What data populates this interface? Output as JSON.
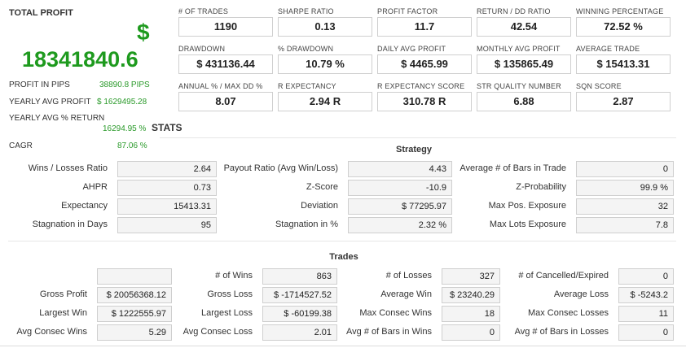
{
  "summary": {
    "total_profit_label": "TOTAL PROFIT",
    "currency_symbol": "$",
    "total_profit_value": "18341840.6",
    "items": [
      {
        "label": "PROFIT IN PIPS",
        "value": "38890.8 PIPS"
      },
      {
        "label": "YEARLY AVG PROFIT",
        "value": "$ 1629495.28"
      },
      {
        "label": "YEARLY AVG % RETURN",
        "value": "16294.95 %"
      },
      {
        "label": "CAGR",
        "value": "87.06 %"
      }
    ]
  },
  "stats_heading": "STATS",
  "metrics": [
    {
      "label": "# OF TRADES",
      "value": "1190"
    },
    {
      "label": "SHARPE RATIO",
      "value": "0.13"
    },
    {
      "label": "PROFIT FACTOR",
      "value": "11.7"
    },
    {
      "label": "RETURN / DD RATIO",
      "value": "42.54"
    },
    {
      "label": "WINNING PERCENTAGE",
      "value": "72.52 %"
    },
    {
      "label": "DRAWDOWN",
      "value": "$ 431136.44"
    },
    {
      "label": "% DRAWDOWN",
      "value": "10.79 %"
    },
    {
      "label": "DAILY AVG PROFIT",
      "value": "$ 4465.99"
    },
    {
      "label": "MONTHLY AVG PROFIT",
      "value": "$ 135865.49"
    },
    {
      "label": "AVERAGE TRADE",
      "value": "$ 15413.31"
    },
    {
      "label": "ANNUAL % / MAX DD %",
      "value": "8.07"
    },
    {
      "label": "R EXPECTANCY",
      "value": "2.94 R"
    },
    {
      "label": "R EXPECTANCY SCORE",
      "value": "310.78 R"
    },
    {
      "label": "STR QUALITY NUMBER",
      "value": "6.88"
    },
    {
      "label": "SQN SCORE",
      "value": "2.87"
    }
  ],
  "strategy": {
    "title": "Strategy",
    "rows": [
      [
        {
          "label": "Wins / Losses Ratio",
          "value": "2.64"
        },
        {
          "label": "Payout Ratio (Avg Win/Loss)",
          "value": "4.43"
        },
        {
          "label": "Average # of Bars in Trade",
          "value": "0"
        }
      ],
      [
        {
          "label": "AHPR",
          "value": "0.73"
        },
        {
          "label": "Z-Score",
          "value": "-10.9"
        },
        {
          "label": "Z-Probability",
          "value": "99.9 %"
        }
      ],
      [
        {
          "label": "Expectancy",
          "value": "15413.31"
        },
        {
          "label": "Deviation",
          "value": "$ 77295.97"
        },
        {
          "label": "Max Pos. Exposure",
          "value": "32"
        }
      ],
      [
        {
          "label": "Stagnation in Days",
          "value": "95"
        },
        {
          "label": "Stagnation in %",
          "value": "2.32 %"
        },
        {
          "label": "Max Lots Exposure",
          "value": "7.8"
        }
      ]
    ]
  },
  "trades": {
    "title": "Trades",
    "rows": [
      [
        {
          "label": "",
          "value": ""
        },
        {
          "label": "# of Wins",
          "value": "863"
        },
        {
          "label": "# of Losses",
          "value": "327"
        },
        {
          "label": "# of Cancelled/Expired",
          "value": "0"
        }
      ],
      [
        {
          "label": "Gross Profit",
          "value": "$ 20056368.12"
        },
        {
          "label": "Gross Loss",
          "value": "$ -1714527.52"
        },
        {
          "label": "Average Win",
          "value": "$ 23240.29"
        },
        {
          "label": "Average Loss",
          "value": "$ -5243.2"
        }
      ],
      [
        {
          "label": "Largest Win",
          "value": "$ 1222555.97"
        },
        {
          "label": "Largest Loss",
          "value": "$ -60199.38"
        },
        {
          "label": "Max Consec Wins",
          "value": "18"
        },
        {
          "label": "Max Consec Losses",
          "value": "11"
        }
      ],
      [
        {
          "label": "Avg Consec Wins",
          "value": "5.29"
        },
        {
          "label": "Avg Consec Loss",
          "value": "2.01"
        },
        {
          "label": "Avg # of Bars in Wins",
          "value": "0"
        },
        {
          "label": "Avg # of Bars in Losses",
          "value": "0"
        }
      ]
    ]
  }
}
